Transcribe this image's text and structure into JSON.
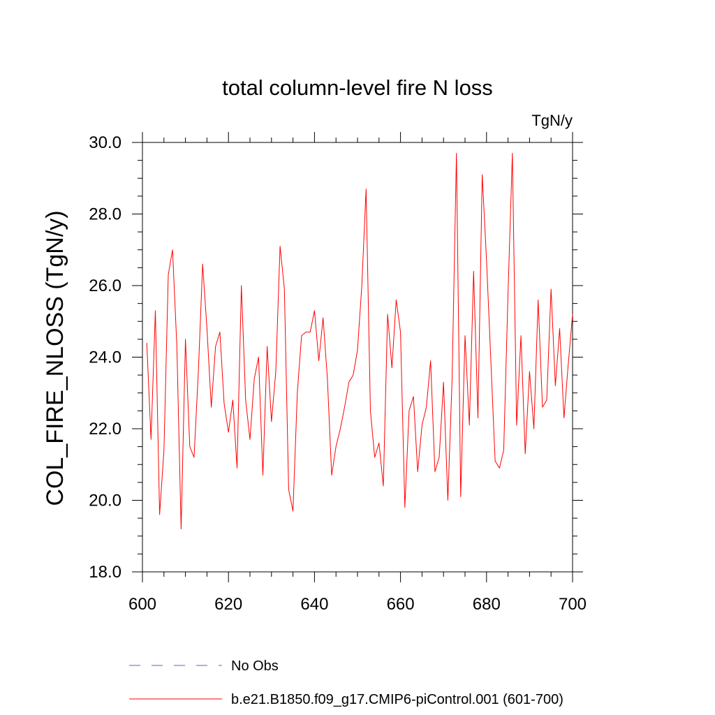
{
  "chart_data": {
    "type": "line",
    "title": "total column-level fire N loss",
    "units_label": "TgN/y",
    "ylabel": "COL_FIRE_NLOSS  (TgN/y)",
    "xlabel": "",
    "xlim": [
      600,
      700
    ],
    "ylim": [
      18,
      30
    ],
    "x_ticks": [
      600,
      620,
      640,
      660,
      680,
      700
    ],
    "x_tick_labels": [
      "600",
      "620",
      "640",
      "660",
      "680",
      "700"
    ],
    "y_ticks": [
      18,
      20,
      22,
      24,
      26,
      28,
      30
    ],
    "y_tick_labels": [
      "18.0",
      "20.0",
      "22.0",
      "24.0",
      "26.0",
      "28.0",
      "30.0"
    ],
    "grid": false,
    "legend": [
      {
        "label": "No Obs",
        "color": "#6a5acd",
        "style": "dashed"
      },
      {
        "label": "b.e21.B1850.f09_g17.CMIP6-piControl.001 (601-700)",
        "color": "#ff0000",
        "style": "solid"
      }
    ],
    "series": [
      {
        "name": "b.e21.B1850.f09_g17.CMIP6-piControl.001 (601-700)",
        "color": "#ff0000",
        "x": [
          601,
          602,
          603,
          604,
          605,
          606,
          607,
          608,
          609,
          610,
          611,
          612,
          613,
          614,
          615,
          616,
          617,
          618,
          619,
          620,
          621,
          622,
          623,
          624,
          625,
          626,
          627,
          628,
          629,
          630,
          631,
          632,
          633,
          634,
          635,
          636,
          637,
          638,
          639,
          640,
          641,
          642,
          643,
          644,
          645,
          646,
          647,
          648,
          649,
          650,
          651,
          652,
          653,
          654,
          655,
          656,
          657,
          658,
          659,
          660,
          661,
          662,
          663,
          664,
          665,
          666,
          667,
          668,
          669,
          670,
          671,
          672,
          673,
          674,
          675,
          676,
          677,
          678,
          679,
          680,
          681,
          682,
          683,
          684,
          685,
          686,
          687,
          688,
          689,
          690,
          691,
          692,
          693,
          694,
          695,
          696,
          697,
          698,
          699,
          700
        ],
        "values": [
          24.4,
          21.7,
          25.3,
          19.6,
          21.4,
          26.3,
          27.0,
          24.3,
          19.2,
          24.5,
          21.5,
          21.2,
          23.6,
          26.6,
          24.8,
          22.6,
          24.3,
          24.7,
          22.7,
          21.9,
          22.8,
          20.9,
          26.0,
          22.8,
          21.7,
          23.4,
          24.0,
          20.7,
          24.3,
          22.2,
          23.6,
          27.1,
          25.9,
          20.3,
          19.7,
          23.0,
          24.6,
          24.7,
          24.7,
          25.3,
          23.9,
          25.1,
          23.4,
          20.7,
          21.5,
          22.0,
          22.6,
          23.3,
          23.5,
          24.2,
          26.0,
          28.7,
          22.5,
          21.2,
          21.6,
          20.4,
          25.2,
          23.7,
          25.6,
          24.7,
          19.8,
          22.5,
          22.9,
          20.8,
          22.1,
          22.6,
          23.9,
          20.8,
          21.2,
          23.3,
          20.0,
          23.4,
          29.7,
          20.1,
          24.6,
          22.1,
          26.4,
          22.3,
          29.1,
          26.7,
          23.9,
          21.1,
          20.9,
          21.4,
          25.8,
          29.7,
          22.1,
          24.6,
          21.3,
          23.6,
          22.0,
          25.6,
          22.6,
          22.8,
          25.9,
          23.2,
          24.8,
          22.3,
          23.8,
          25.2
        ]
      }
    ]
  }
}
